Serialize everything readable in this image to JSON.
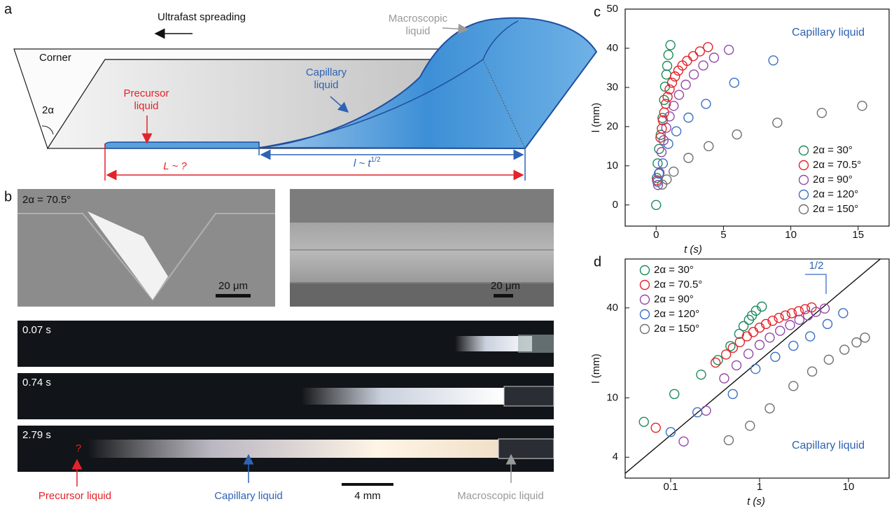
{
  "panel_a": {
    "label": "a",
    "spreading": "Ultrafast spreading",
    "macroscopic": [
      "Macroscopic",
      "liquid"
    ],
    "corner": "Corner",
    "angle": "2α",
    "precursor": [
      "Precursor",
      "liquid"
    ],
    "capillary": [
      "Capillary",
      "liquid"
    ],
    "L_label": "L ~ ?",
    "l_label": "l ~ t",
    "l_exponent": "1/2"
  },
  "panel_b": {
    "label": "b",
    "angle": "2α = 70.5°",
    "scale_left": "20 μm",
    "scale_right": "20  μm",
    "frames": [
      "0.07 s",
      "0.74 s",
      "2.79 s"
    ],
    "question": "?",
    "precursor": "Precursor liquid",
    "capillary": "Capillary liquid",
    "scale": "4 mm",
    "macroscopic": "Macroscopic liquid"
  },
  "chart_data": [
    {
      "label": "c",
      "type": "scatter",
      "xlabel": "t (s)",
      "ylabel": "l (mm)",
      "annotation": "Capillary liquid",
      "legend": "lower right",
      "xlim": [
        -2.3,
        17.3
      ],
      "ylim": [
        -5.4,
        50
      ],
      "xticks": [
        0,
        5,
        10,
        15
      ],
      "yticks": [
        0,
        10,
        20,
        30,
        40,
        50
      ],
      "series": [
        {
          "name": "2α = 30°",
          "color": "#1d8a5c",
          "x": [
            0,
            0.05,
            0.11,
            0.22,
            0.34,
            0.47,
            0.59,
            0.66,
            0.76,
            0.82,
            0.91,
            1.06
          ],
          "values": [
            0,
            6.9,
            10.6,
            14.3,
            17.9,
            22.2,
            26.8,
            30.2,
            33.3,
            35.5,
            38.3,
            40.8
          ]
        },
        {
          "name": "2α = 70.5°",
          "color": "#e3232a",
          "x": [
            0.068,
            0.32,
            0.42,
            0.5,
            0.6,
            0.72,
            0.85,
            1.0,
            1.18,
            1.4,
            1.65,
            1.95,
            2.3,
            2.75,
            3.25,
            3.85
          ],
          "values": [
            6.3,
            17.2,
            19.5,
            21.6,
            23.6,
            25.8,
            27.6,
            29.5,
            31.2,
            32.8,
            34.3,
            35.6,
            36.8,
            38,
            39.2,
            40.3
          ]
        },
        {
          "name": "2α = 90°",
          "color": "#9448a6",
          "x": [
            0.14,
            0.25,
            0.4,
            0.55,
            0.75,
            1.0,
            1.3,
            1.7,
            2.2,
            2.8,
            3.5,
            4.3,
            5.4
          ],
          "values": [
            5.1,
            8.2,
            13.5,
            16.5,
            19.7,
            22.6,
            25.3,
            28.1,
            30.7,
            33.3,
            35.6,
            37.6,
            39.6
          ]
        },
        {
          "name": "2α = 120°",
          "color": "#3b6fc3",
          "x": [
            0.1,
            0.2,
            0.5,
            0.9,
            1.5,
            2.4,
            3.7,
            5.8,
            8.7
          ],
          "values": [
            5.9,
            8,
            10.6,
            15.6,
            18.8,
            22.3,
            25.8,
            31.2,
            36.9
          ]
        },
        {
          "name": "2α = 150°",
          "color": "#6e6e6e",
          "x": [
            0.45,
            0.78,
            1.3,
            2.4,
            3.9,
            6,
            9,
            12.3,
            15.3
          ],
          "values": [
            5.2,
            6.5,
            8.5,
            12,
            15,
            18,
            21,
            23.5,
            25.3
          ]
        }
      ]
    },
    {
      "label": "d",
      "type": "scatter",
      "xlabel": "t (s)",
      "ylabel": "l (mm)",
      "annotation": "Capillary liquid",
      "legend": "upper left",
      "xlog": true,
      "ylog": true,
      "xlim": [
        0.0308,
        28.6
      ],
      "ylim": [
        2.9,
        85
      ],
      "xticks": [
        0.1,
        1,
        10
      ],
      "yticks": [
        4,
        10,
        40
      ],
      "lines": [
        {
          "color": "#000000",
          "x": [
            0.0308,
            22.8
          ],
          "values": [
            3.12,
            85
          ]
        }
      ],
      "slope_label": "1/2",
      "series": [
        {
          "name": "2α = 30°",
          "color": "#1d8a5c",
          "x": [
            0.05,
            0.11,
            0.22,
            0.34,
            0.47,
            0.59,
            0.66,
            0.76,
            0.82,
            0.91,
            1.06
          ],
          "values": [
            6.9,
            10.6,
            14.3,
            17.9,
            22.2,
            26.8,
            30.2,
            33.3,
            35.5,
            38.3,
            40.8
          ]
        },
        {
          "name": "2α = 70.5°",
          "color": "#e3232a",
          "x": [
            0.068,
            0.32,
            0.42,
            0.5,
            0.6,
            0.72,
            0.85,
            1.0,
            1.18,
            1.4,
            1.65,
            1.95,
            2.3,
            2.75,
            3.25,
            3.85
          ],
          "values": [
            6.3,
            17.2,
            19.5,
            21.6,
            23.6,
            25.8,
            27.6,
            29.5,
            31.2,
            32.8,
            34.3,
            35.6,
            36.8,
            38,
            39.2,
            40.3
          ]
        },
        {
          "name": "2α = 90°",
          "color": "#9448a6",
          "x": [
            0.14,
            0.25,
            0.4,
            0.55,
            0.75,
            1.0,
            1.3,
            1.7,
            2.2,
            2.8,
            3.5,
            4.3,
            5.4
          ],
          "values": [
            5.1,
            8.2,
            13.5,
            16.5,
            19.7,
            22.6,
            25.3,
            28.1,
            30.7,
            33.3,
            35.6,
            37.6,
            39.6
          ]
        },
        {
          "name": "2α = 120°",
          "color": "#3b6fc3",
          "x": [
            0.1,
            0.2,
            0.5,
            0.9,
            1.5,
            2.4,
            3.7,
            5.8,
            8.7
          ],
          "values": [
            5.9,
            8,
            10.6,
            15.6,
            18.8,
            22.3,
            25.8,
            31.2,
            36.9
          ]
        },
        {
          "name": "2α = 150°",
          "color": "#6e6e6e",
          "x": [
            0.45,
            0.78,
            1.3,
            2.4,
            3.9,
            6,
            9,
            12.3,
            15.3
          ],
          "values": [
            5.2,
            6.5,
            8.5,
            12,
            15,
            18,
            21,
            23.5,
            25.3
          ]
        }
      ]
    }
  ]
}
